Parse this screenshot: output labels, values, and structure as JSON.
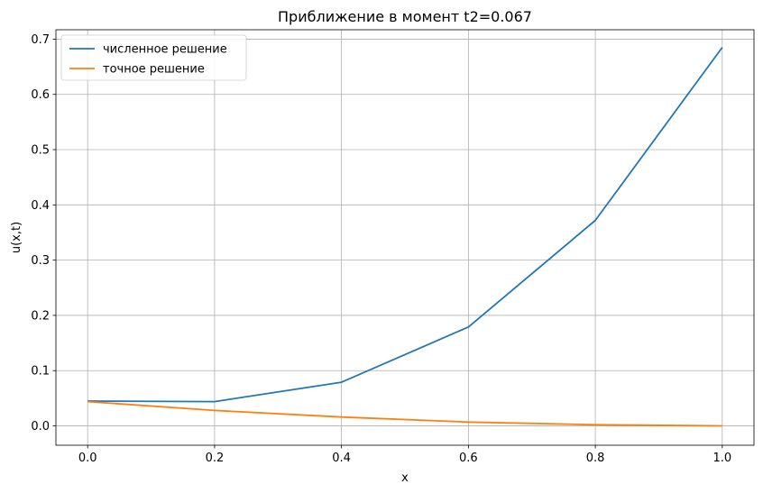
{
  "chart_data": {
    "type": "line",
    "title": "Приближение в момент t2=0.067",
    "xlabel": "x",
    "ylabel": "u(x,t)",
    "xlim": [
      -0.05,
      1.05
    ],
    "ylim": [
      -0.035,
      0.717
    ],
    "xticks": [
      0.0,
      0.2,
      0.4,
      0.6,
      0.8,
      1.0
    ],
    "xtick_labels": [
      "0.0",
      "0.2",
      "0.4",
      "0.6",
      "0.8",
      "1.0"
    ],
    "yticks": [
      0.0,
      0.1,
      0.2,
      0.3,
      0.4,
      0.5,
      0.6,
      0.7
    ],
    "ytick_labels": [
      "0.0",
      "0.1",
      "0.2",
      "0.3",
      "0.4",
      "0.5",
      "0.6",
      "0.7"
    ],
    "grid": true,
    "legend_position": "top-left",
    "x": [
      0.0,
      0.2,
      0.4,
      0.6,
      0.8,
      1.0
    ],
    "series": [
      {
        "name": "численное решение",
        "color": "#1f77b4",
        "values": [
          0.045,
          0.044,
          0.079,
          0.179,
          0.372,
          0.685
        ]
      },
      {
        "name": "точное решение",
        "color": "#ff7f0e",
        "values": [
          0.044,
          0.028,
          0.016,
          0.007,
          0.002,
          0.0
        ]
      }
    ]
  }
}
